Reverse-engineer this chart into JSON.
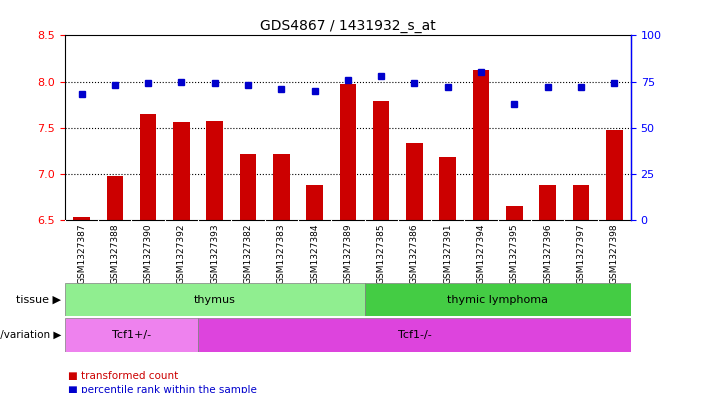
{
  "title": "GDS4867 / 1431932_s_at",
  "samples": [
    "GSM1327387",
    "GSM1327388",
    "GSM1327390",
    "GSM1327392",
    "GSM1327393",
    "GSM1327382",
    "GSM1327383",
    "GSM1327384",
    "GSM1327389",
    "GSM1327385",
    "GSM1327386",
    "GSM1327391",
    "GSM1327394",
    "GSM1327395",
    "GSM1327396",
    "GSM1327397",
    "GSM1327398"
  ],
  "red_values": [
    6.53,
    6.98,
    7.65,
    7.56,
    7.57,
    7.22,
    7.22,
    6.88,
    7.97,
    7.79,
    7.33,
    7.18,
    8.12,
    6.65,
    6.88,
    6.88,
    7.48
  ],
  "blue_values_pct": [
    68,
    73,
    74,
    75,
    74,
    73,
    71,
    70,
    76,
    78,
    74,
    72,
    80,
    63,
    72,
    72,
    74
  ],
  "ylim_left": [
    6.5,
    8.5
  ],
  "ylim_right": [
    0,
    100
  ],
  "yticks_left": [
    6.5,
    7.0,
    7.5,
    8.0,
    8.5
  ],
  "yticks_right": [
    0,
    25,
    50,
    75,
    100
  ],
  "tissue_groups": [
    {
      "label": "thymus",
      "start": 0,
      "end": 9,
      "color": "#90EE90"
    },
    {
      "label": "thymic lymphoma",
      "start": 9,
      "end": 17,
      "color": "#44CC44"
    }
  ],
  "genotype_groups": [
    {
      "label": "Tcf1+/-",
      "start": 0,
      "end": 4,
      "color": "#EE82EE"
    },
    {
      "label": "Tcf1-/-",
      "start": 4,
      "end": 17,
      "color": "#DD44DD"
    }
  ],
  "tissue_label": "tissue",
  "genotype_label": "genotype/variation",
  "bar_color": "#CC0000",
  "dot_color": "#0000CC",
  "background_color": "#ffffff",
  "tick_bg_color": "#CCCCCC",
  "grid_dotted_vals": [
    7.0,
    7.5,
    8.0
  ],
  "legend_red": "transformed count",
  "legend_blue": "percentile rank within the sample"
}
